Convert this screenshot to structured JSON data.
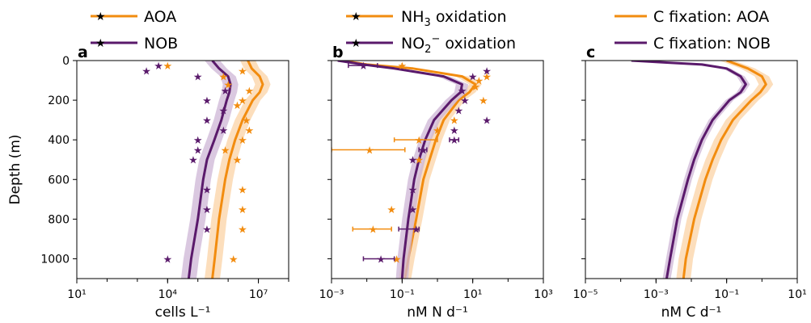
{
  "colors": {
    "aoa": "#F28C0F",
    "nob": "#5A1A6B",
    "aoa_band": "#FBD3A5",
    "nob_band": "#CDB6D6"
  },
  "y_axis": {
    "label": "Depth (m)",
    "ylim": [
      0,
      1100
    ],
    "ticks": [
      0,
      200,
      400,
      600,
      800,
      1000
    ],
    "inverted": true
  },
  "chart_data": [
    {
      "type": "line",
      "panel": "a",
      "xscale": "log",
      "xlim_log10": [
        1,
        8
      ],
      "xticks": [
        {
          "exp": 1,
          "label": "10¹"
        },
        {
          "exp": 4,
          "label": "10⁴"
        },
        {
          "exp": 7,
          "label": "10⁷"
        }
      ],
      "xlabel": "cells L⁻¹",
      "legend": [
        "AOA",
        "NOB"
      ],
      "series": [
        {
          "name": "AOA",
          "color_key": "aoa",
          "line": {
            "depth": [
              0,
              40,
              80,
              120,
              160,
              200,
              300,
              400,
              500,
              600,
              800,
              1000,
              1100
            ],
            "value": [
              4500000.0,
              6000000.0,
              11000000.0,
              14000000.0,
              11000000.0,
              6500000.0,
              3000000.0,
              1700000.0,
              1100000.0,
              800000.0,
              500000.0,
              360000.0,
              300000.0
            ]
          },
          "band_factor": 1.8,
          "points": [
            {
              "depth": 25,
              "value": 10000.0
            },
            {
              "depth": 50,
              "value": 3000000.0
            },
            {
              "depth": 80,
              "value": 700000.0
            },
            {
              "depth": 120,
              "value": 1000000.0
            },
            {
              "depth": 150,
              "value": 5000000.0
            },
            {
              "depth": 200,
              "value": 3000000.0
            },
            {
              "depth": 225,
              "value": 2000000.0
            },
            {
              "depth": 300,
              "value": 4000000.0
            },
            {
              "depth": 350,
              "value": 5000000.0
            },
            {
              "depth": 400,
              "value": 3000000.0
            },
            {
              "depth": 450,
              "value": 800000.0
            },
            {
              "depth": 500,
              "value": 2000000.0
            },
            {
              "depth": 650,
              "value": 3000000.0
            },
            {
              "depth": 750,
              "value": 3000000.0
            },
            {
              "depth": 850,
              "value": 3000000.0
            },
            {
              "depth": 1000,
              "value": 1500000.0
            }
          ]
        },
        {
          "name": "NOB",
          "color_key": "nob",
          "line": {
            "depth": [
              0,
              40,
              80,
              120,
              160,
              200,
              300,
              400,
              500,
              600,
              800,
              1000,
              1100
            ],
            "value": [
              300000.0,
              500000.0,
              1000000.0,
              1200000.0,
              1100000.0,
              900000.0,
              600000.0,
              350000.0,
              200000.0,
              150000.0,
              100000.0,
              60000.0,
              50000.0
            ]
          },
          "band_factor": 1.8,
          "points": [
            {
              "depth": 25,
              "value": 5000.0
            },
            {
              "depth": 50,
              "value": 2000.0
            },
            {
              "depth": 80,
              "value": 100000.0
            },
            {
              "depth": 150,
              "value": 800000.0
            },
            {
              "depth": 200,
              "value": 200000.0
            },
            {
              "depth": 250,
              "value": 700000.0
            },
            {
              "depth": 300,
              "value": 200000.0
            },
            {
              "depth": 350,
              "value": 700000.0
            },
            {
              "depth": 400,
              "value": 100000.0
            },
            {
              "depth": 450,
              "value": 100000.0
            },
            {
              "depth": 500,
              "value": 70000.0
            },
            {
              "depth": 650,
              "value": 200000.0
            },
            {
              "depth": 750,
              "value": 200000.0
            },
            {
              "depth": 850,
              "value": 200000.0
            },
            {
              "depth": 1000,
              "value": 10000.0
            }
          ]
        }
      ]
    },
    {
      "type": "line",
      "panel": "b",
      "xscale": "log",
      "xlim_log10": [
        -3,
        3
      ],
      "xticks": [
        {
          "exp": -3,
          "label": "10⁻³"
        },
        {
          "exp": -1,
          "label": "10⁻¹"
        },
        {
          "exp": 1,
          "label": "10¹"
        },
        {
          "exp": 3,
          "label": "10³"
        }
      ],
      "xlabel": "nM N d⁻¹",
      "legend": [
        "NH3 oxidation",
        "NO2⁻ oxidation"
      ],
      "series": [
        {
          "name": "NH3 oxidation",
          "color_key": "aoa",
          "line": {
            "depth": [
              0,
              20,
              40,
              80,
              120,
              160,
              200,
              300,
              400,
              500,
              600,
              800,
              1000,
              1100
            ],
            "value": [
              0.002,
              0.01,
              0.2,
              5,
              12,
              8,
              4,
              1.5,
              0.9,
              0.6,
              0.4,
              0.25,
              0.15,
              0.12
            ]
          },
          "band_factor": 1.5,
          "points": [
            {
              "depth": 25,
              "value": 0.1,
              "err_lo": 0.1,
              "err_hi": 0.1
            },
            {
              "depth": 80,
              "value": 25
            },
            {
              "depth": 100,
              "value": 15
            },
            {
              "depth": 130,
              "value": 12
            },
            {
              "depth": 200,
              "value": 20
            },
            {
              "depth": 300,
              "value": 3
            },
            {
              "depth": 350,
              "value": 1
            },
            {
              "depth": 400,
              "value": 0.3,
              "err_lo": 0.06,
              "err_hi": 1.0
            },
            {
              "depth": 450,
              "value": 0.012,
              "err_lo": 0.001,
              "err_hi": 0.12
            },
            {
              "depth": 500,
              "value": 0.3
            },
            {
              "depth": 750,
              "value": 0.05
            },
            {
              "depth": 850,
              "value": 0.015,
              "err_lo": 0.004,
              "err_hi": 0.05
            },
            {
              "depth": 1000,
              "value": 0.07
            }
          ]
        },
        {
          "name": "NO2⁻ oxidation",
          "color_key": "nob",
          "line": {
            "depth": [
              0,
              20,
              40,
              80,
              120,
              160,
              200,
              300,
              400,
              500,
              600,
              800,
              1000,
              1100
            ],
            "value": [
              0.0015,
              0.008,
              0.06,
              1.5,
              5,
              4.5,
              2.5,
              0.8,
              0.45,
              0.3,
              0.22,
              0.15,
              0.11,
              0.1
            ]
          },
          "band_factor": 1.5,
          "points": [
            {
              "depth": 25,
              "value": 0.008,
              "err_lo": 0.003,
              "err_hi": 0.02
            },
            {
              "depth": 50,
              "value": 25
            },
            {
              "depth": 80,
              "value": 10
            },
            {
              "depth": 150,
              "value": 5
            },
            {
              "depth": 200,
              "value": 6
            },
            {
              "depth": 250,
              "value": 4
            },
            {
              "depth": 300,
              "value": 25
            },
            {
              "depth": 350,
              "value": 3
            },
            {
              "depth": 400,
              "value": 3,
              "err_lo": 2.2,
              "err_hi": 4
            },
            {
              "depth": 450,
              "value": 0.4,
              "err_lo": 0.3,
              "err_hi": 0.5
            },
            {
              "depth": 500,
              "value": 0.2
            },
            {
              "depth": 650,
              "value": 0.2
            },
            {
              "depth": 750,
              "value": 0.2
            },
            {
              "depth": 850,
              "value": 0.25,
              "err_lo": 0.08,
              "err_hi": 0.3
            },
            {
              "depth": 1000,
              "value": 0.025,
              "err_lo": 0.008,
              "err_hi": 0.06
            }
          ]
        }
      ]
    },
    {
      "type": "line",
      "panel": "c",
      "xscale": "log",
      "xlim_log10": [
        -5,
        1
      ],
      "xticks": [
        {
          "exp": -5,
          "label": "10⁻⁵"
        },
        {
          "exp": -3,
          "label": "10⁻³"
        },
        {
          "exp": -1,
          "label": "10⁻¹"
        },
        {
          "exp": 1,
          "label": "10¹"
        }
      ],
      "xlabel": "nM C d⁻¹",
      "legend": [
        "C fixation: AOA",
        "C fixation: NOB"
      ],
      "series": [
        {
          "name": "C fixation: AOA",
          "color_key": "aoa",
          "line": {
            "depth": [
              0,
              20,
              40,
              80,
              120,
              160,
              200,
              300,
              400,
              500,
              600,
              800,
              1000,
              1100
            ],
            "value": [
              0.1,
              0.2,
              0.4,
              1.0,
              1.3,
              0.9,
              0.5,
              0.15,
              0.07,
              0.04,
              0.025,
              0.012,
              0.007,
              0.006
            ]
          },
          "band_factor": 1.6
        },
        {
          "name": "C fixation: NOB",
          "color_key": "nob",
          "line": {
            "depth": [
              0,
              10,
              20,
              40,
              80,
              120,
              160,
              200,
              300,
              400,
              500,
              600,
              800,
              1000,
              1100
            ],
            "value": [
              0.0002,
              0.002,
              0.02,
              0.1,
              0.25,
              0.35,
              0.25,
              0.12,
              0.04,
              0.02,
              0.012,
              0.008,
              0.004,
              0.0025,
              0.002
            ]
          },
          "band_factor": 1.3
        }
      ]
    }
  ]
}
